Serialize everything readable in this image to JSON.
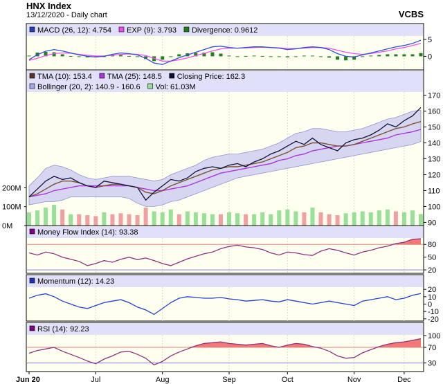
{
  "header": {
    "title": "HNX Index",
    "subtitle": "13/12/2020 - Daily chart",
    "brand": "VCBS"
  },
  "colors": {
    "plot_bg": "#FFFFF0",
    "legend_bg": "#E0E0F8",
    "band_fill": "#C8C8F0",
    "price_line": "#10103A",
    "tma10": "#7A5030",
    "tma25": "#B030E0",
    "macd_line": "#3050D0",
    "exp_line": "#F050F0",
    "divergence": "#208020",
    "mfi_line": "#903080",
    "momentum_line": "#2040D0",
    "rsi_line": "#903080",
    "rsi_fill": "#F06060",
    "vol_up": "#98E098",
    "vol_down": "#F0A0A0",
    "ref_line": "#E08080"
  },
  "chart_data": [
    {
      "id": "macd",
      "type": "line",
      "title": "",
      "legend": [
        {
          "swatch": "#2040C0",
          "text": "MACD (26, 12): 4.754"
        },
        {
          "swatch": "#F050F0",
          "text": "EXP (9): 3.793"
        },
        {
          "swatch": "#208020",
          "text": "Divergence: 0.9612"
        }
      ],
      "ylim": [
        -4,
        6
      ],
      "yticks": [
        "5",
        "0"
      ],
      "macd": [
        -1.0,
        0.5,
        1.5,
        2.0,
        1.6,
        1.0,
        0.4,
        0.0,
        -0.2,
        0.0,
        0.6,
        1.0,
        0.8,
        0.4,
        -0.6,
        -2.0,
        -2.4,
        -1.4,
        -0.4,
        0.4,
        1.2,
        2.0,
        2.8,
        3.0,
        2.6,
        2.4,
        2.6,
        2.8,
        2.8,
        2.6,
        2.4,
        2.0,
        2.2,
        2.6,
        2.8,
        2.6,
        2.0,
        0.8,
        0.0,
        -0.2,
        0.4,
        1.0,
        1.6,
        2.2,
        2.8,
        3.2,
        3.8,
        4.754
      ],
      "signal": [
        -1.2,
        -0.6,
        0.2,
        0.8,
        1.0,
        0.9,
        0.6,
        0.3,
        0.1,
        0.1,
        0.3,
        0.6,
        0.7,
        0.6,
        0.2,
        -0.6,
        -1.4,
        -1.4,
        -1.0,
        -0.5,
        0.2,
        0.9,
        1.6,
        2.2,
        2.4,
        2.4,
        2.5,
        2.6,
        2.7,
        2.6,
        2.5,
        2.3,
        2.3,
        2.4,
        2.6,
        2.6,
        2.4,
        1.8,
        1.2,
        0.8,
        0.6,
        0.8,
        1.2,
        1.6,
        2.2,
        2.6,
        3.2,
        3.793
      ],
      "divergence": [
        0.2,
        1.1,
        1.3,
        1.2,
        0.6,
        0.1,
        -0.2,
        -0.3,
        -0.3,
        -0.1,
        0.3,
        0.4,
        0.1,
        -0.2,
        -0.8,
        -1.4,
        -1.0,
        0.0,
        0.6,
        0.9,
        1.0,
        1.1,
        1.2,
        0.8,
        0.2,
        0.0,
        0.1,
        0.2,
        0.1,
        0.0,
        -0.1,
        -0.3,
        -0.1,
        0.2,
        0.2,
        0.0,
        -0.4,
        -1.0,
        -1.2,
        -1.0,
        -0.2,
        0.2,
        0.4,
        0.6,
        0.6,
        0.6,
        0.6,
        0.9612
      ]
    },
    {
      "id": "price",
      "type": "line",
      "title": "",
      "legend": [
        {
          "swatch": "#603020",
          "text": "TMA (10): 153.4"
        },
        {
          "swatch": "#B030E0",
          "text": "TMA (25): 148.5"
        },
        {
          "swatch": "#101030",
          "text": "Closing Price: 162.3"
        },
        {
          "swatch": "#A0A8E8",
          "text": "Bollinger (20, 2): 140.9 - 160.6"
        },
        {
          "swatch": "#98E098",
          "text": "Vol: 61.03M"
        }
      ],
      "ylim": [
        88,
        172
      ],
      "yticks": [
        "170",
        "160",
        "150",
        "140",
        "130",
        "120",
        "110",
        "100",
        "90"
      ],
      "volume_ticks": [
        "200M",
        "100M",
        "0M"
      ],
      "close": [
        106,
        111,
        116,
        119,
        117,
        118,
        115,
        113,
        112,
        116,
        115,
        114,
        113,
        112,
        104,
        109,
        113,
        117,
        116,
        118,
        122,
        124,
        125,
        124,
        126,
        127,
        125,
        128,
        130,
        133,
        135,
        138,
        141,
        139,
        143,
        139,
        137,
        135,
        140,
        142,
        143,
        145,
        148,
        152,
        150,
        154,
        157,
        162.3
      ],
      "tma10": [
        106,
        108,
        111,
        114,
        116,
        116,
        115,
        113,
        112,
        113,
        114,
        114,
        113,
        112,
        109,
        108,
        110,
        113,
        115,
        117,
        119,
        121,
        123,
        124,
        125,
        125,
        126,
        127,
        128,
        130,
        132,
        134,
        137,
        138,
        140,
        140,
        139,
        138,
        138,
        139,
        141,
        143,
        145,
        147,
        149,
        150,
        152,
        153.4
      ],
      "tma25": [
        106,
        107,
        108,
        110,
        111,
        112,
        113,
        113,
        113,
        113,
        113,
        113,
        113,
        112,
        111,
        110,
        110,
        111,
        112,
        113,
        115,
        117,
        119,
        121,
        122,
        123,
        124,
        125,
        126,
        127,
        129,
        130,
        132,
        133,
        135,
        136,
        137,
        138,
        138,
        139,
        140,
        141,
        142,
        143,
        145,
        146,
        147,
        148.5
      ],
      "boll_upper": [
        113,
        118,
        124,
        126,
        125,
        123,
        120,
        118,
        117,
        118,
        119,
        119,
        119,
        118,
        117,
        116,
        117,
        120,
        122,
        124,
        126,
        129,
        131,
        132,
        133,
        133,
        134,
        135,
        136,
        138,
        140,
        143,
        146,
        147,
        149,
        149,
        148,
        147,
        147,
        148,
        149,
        151,
        153,
        155,
        156,
        158,
        160,
        160.6
      ],
      "boll_lower": [
        101,
        102,
        103,
        103,
        104,
        106,
        106,
        106,
        106,
        106,
        106,
        106,
        105,
        102,
        100,
        100,
        101,
        103,
        104,
        106,
        108,
        110,
        112,
        114,
        116,
        118,
        119,
        120,
        121,
        122,
        123,
        124,
        125,
        126,
        127,
        128,
        129,
        130,
        131,
        132,
        133,
        134,
        135,
        136,
        137,
        138,
        139,
        140.9
      ],
      "volume_m": [
        70,
        80,
        95,
        110,
        85,
        60,
        60,
        55,
        50,
        70,
        60,
        65,
        60,
        55,
        95,
        75,
        70,
        85,
        60,
        75,
        70,
        65,
        60,
        60,
        70,
        65,
        60,
        60,
        70,
        60,
        80,
        85,
        75,
        70,
        95,
        70,
        60,
        55,
        65,
        70,
        75,
        70,
        80,
        85,
        75,
        70,
        80,
        61.03
      ],
      "volume_up": [
        true,
        true,
        true,
        true,
        false,
        true,
        false,
        false,
        false,
        true,
        false,
        false,
        false,
        false,
        false,
        true,
        true,
        true,
        false,
        true,
        true,
        true,
        true,
        false,
        true,
        true,
        false,
        true,
        true,
        true,
        true,
        true,
        true,
        false,
        true,
        false,
        false,
        false,
        true,
        true,
        true,
        true,
        true,
        true,
        false,
        true,
        true,
        true
      ]
    },
    {
      "id": "mfi",
      "type": "line",
      "title": "",
      "legend": [
        {
          "swatch": "#800080",
          "text": "Money Flow Index (14): 93.38"
        }
      ],
      "ylim": [
        12,
        95
      ],
      "yticks": [
        "80",
        "50",
        "20"
      ],
      "yticks_colored": [
        true,
        false,
        true
      ],
      "ref_lines": [
        80,
        20
      ],
      "values": [
        60,
        55,
        62,
        58,
        50,
        45,
        40,
        30,
        35,
        42,
        38,
        45,
        50,
        44,
        48,
        42,
        35,
        30,
        38,
        46,
        52,
        58,
        62,
        70,
        75,
        78,
        74,
        72,
        68,
        60,
        55,
        62,
        60,
        56,
        54,
        64,
        70,
        66,
        60,
        55,
        62,
        66,
        72,
        76,
        82,
        85,
        92,
        93.38
      ],
      "fill_above": 80
    },
    {
      "id": "momentum",
      "type": "line",
      "title": "",
      "legend": [
        {
          "swatch": "#2030C0",
          "text": "Momentum (12): 14.23"
        }
      ],
      "ylim": [
        -23,
        23
      ],
      "yticks": [
        "20",
        "10",
        "0",
        "-10",
        "-20"
      ],
      "values": [
        8,
        12,
        14,
        10,
        4,
        0,
        -4,
        -6,
        -2,
        2,
        4,
        6,
        2,
        -4,
        -8,
        -14,
        -6,
        2,
        8,
        10,
        9,
        8,
        8,
        9,
        7,
        6,
        4,
        5,
        6,
        4,
        3,
        6,
        4,
        2,
        0,
        2,
        4,
        2,
        0,
        -2,
        4,
        6,
        8,
        10,
        6,
        8,
        12,
        14.23
      ]
    },
    {
      "id": "rsi",
      "type": "line",
      "title": "",
      "legend": [
        {
          "swatch": "#800080",
          "text": "RSI (14): 92.23"
        }
      ],
      "ylim": [
        8,
        102
      ],
      "yticks": [
        "100",
        "70",
        "30"
      ],
      "yticks_colored": [
        false,
        true,
        true
      ],
      "ref_lines": [
        70,
        30
      ],
      "values": [
        55,
        62,
        66,
        70,
        60,
        52,
        44,
        35,
        28,
        40,
        48,
        58,
        60,
        52,
        42,
        25,
        34,
        48,
        58,
        66,
        74,
        80,
        82,
        84,
        80,
        78,
        76,
        78,
        80,
        74,
        70,
        76,
        80,
        78,
        72,
        68,
        60,
        48,
        42,
        44,
        56,
        64,
        72,
        78,
        82,
        84,
        88,
        92.23
      ],
      "fill_above": 70
    }
  ],
  "x_axis": {
    "months": [
      {
        "label": "Jun 20",
        "bold": true,
        "idx": 0
      },
      {
        "label": "Jul",
        "bold": false,
        "idx": 8
      },
      {
        "label": "Aug",
        "bold": false,
        "idx": 16
      },
      {
        "label": "Sep",
        "bold": false,
        "idx": 24
      },
      {
        "label": "Oct",
        "bold": false,
        "idx": 31
      },
      {
        "label": "Nov",
        "bold": false,
        "idx": 39
      },
      {
        "label": "Dec",
        "bold": false,
        "idx": 45
      }
    ]
  }
}
